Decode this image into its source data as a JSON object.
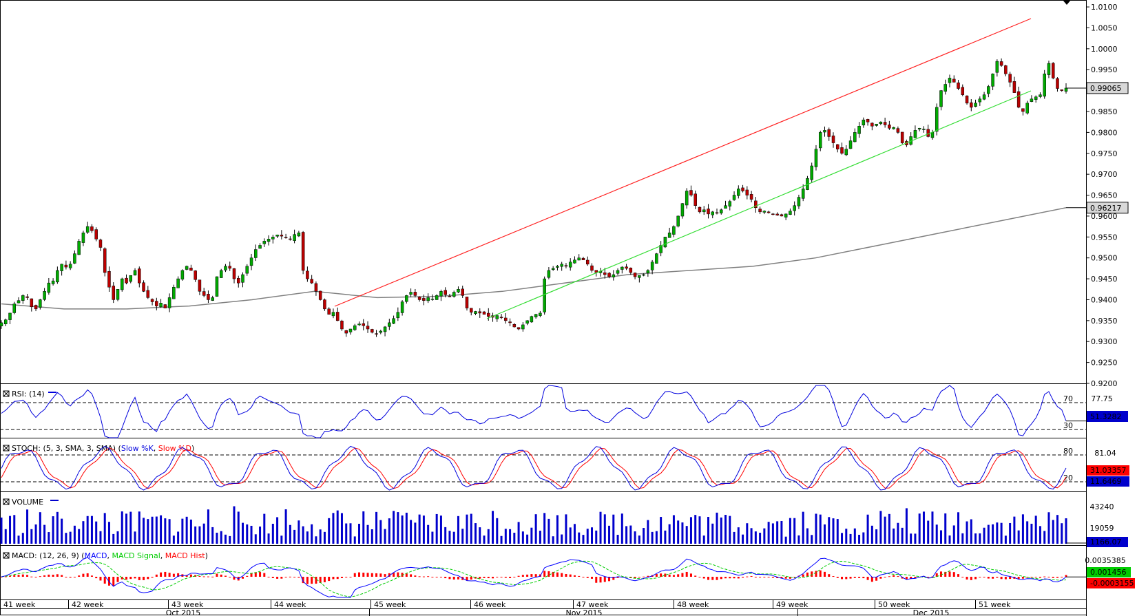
{
  "chart_data": {
    "type": "candlestick",
    "price_axis": {
      "ticks": [
        "1.0100",
        "1.0050",
        "1.0000",
        "0.9950",
        "0.9900",
        "0.9850",
        "0.9800",
        "0.9750",
        "0.9700",
        "0.9650",
        "0.9600",
        "0.9550",
        "0.9500",
        "0.9450",
        "0.9400",
        "0.9350",
        "0.9300",
        "0.9250",
        "0.9200"
      ],
      "range": [
        0.92,
        1.011
      ],
      "last_price_label": "0.99065",
      "ma_label": "0.96217"
    },
    "price_series": [
      0.9345,
      0.9352,
      0.9368,
      0.939,
      0.9398,
      0.941,
      0.9405,
      0.9383,
      0.9378,
      0.94,
      0.942,
      0.944,
      0.9445,
      0.947,
      0.9485,
      0.9478,
      0.9485,
      0.951,
      0.954,
      0.956,
      0.9575,
      0.9565,
      0.9545,
      0.9525,
      0.9465,
      0.943,
      0.94,
      0.9425,
      0.945,
      0.944,
      0.9458,
      0.947,
      0.944,
      0.942,
      0.9405,
      0.9395,
      0.9385,
      0.9392,
      0.938,
      0.9405,
      0.943,
      0.945,
      0.947,
      0.948,
      0.947,
      0.9448,
      0.942,
      0.941,
      0.94,
      0.9405,
      0.9455,
      0.947,
      0.948,
      0.9475,
      0.945,
      0.944,
      0.946,
      0.948,
      0.95,
      0.952,
      0.953,
      0.954,
      0.9545,
      0.955,
      0.9555,
      0.9552,
      0.9548,
      0.9545,
      0.9556,
      0.956,
      0.947,
      0.945,
      0.944,
      0.942,
      0.94,
      0.9378,
      0.9365,
      0.937,
      0.935,
      0.933,
      0.932,
      0.933,
      0.9338,
      0.9342,
      0.9338,
      0.933,
      0.9322,
      0.9318,
      0.9325,
      0.9335,
      0.9345,
      0.9355,
      0.937,
      0.9395,
      0.941,
      0.9418,
      0.941,
      0.94,
      0.9398,
      0.9405,
      0.9402,
      0.941,
      0.942,
      0.9412,
      0.9408,
      0.9418,
      0.9425,
      0.941,
      0.938,
      0.937,
      0.9372,
      0.9368,
      0.9365,
      0.936,
      0.9358,
      0.9362,
      0.9358,
      0.935,
      0.9345,
      0.9335,
      0.933,
      0.934,
      0.935,
      0.936,
      0.9365,
      0.9368,
      0.945,
      0.947,
      0.9475,
      0.948,
      0.9485,
      0.948,
      0.949,
      0.9495,
      0.95,
      0.9495,
      0.9485,
      0.947,
      0.9465,
      0.9468,
      0.946,
      0.9455,
      0.946,
      0.947,
      0.9478,
      0.9475,
      0.9465,
      0.9455,
      0.9458,
      0.946,
      0.947,
      0.949,
      0.951,
      0.953,
      0.955,
      0.956,
      0.9575,
      0.96,
      0.963,
      0.966,
      0.965,
      0.9625,
      0.961,
      0.9615,
      0.9605,
      0.961,
      0.9608,
      0.9615,
      0.9625,
      0.9635,
      0.965,
      0.9665,
      0.966,
      0.965,
      0.964,
      0.962,
      0.961,
      0.9612,
      0.9608,
      0.9605,
      0.9602,
      0.96,
      0.9605,
      0.9612,
      0.9625,
      0.9645,
      0.9665,
      0.969,
      0.972,
      0.976,
      0.98,
      0.9805,
      0.979,
      0.9775,
      0.976,
      0.975,
      0.976,
      0.978,
      0.98,
      0.9815,
      0.983,
      0.9825,
      0.9815,
      0.982,
      0.9825,
      0.9818,
      0.981,
      0.9812,
      0.98,
      0.9775,
      0.977,
      0.979,
      0.9805,
      0.981,
      0.9808,
      0.979,
      0.98,
      0.986,
      0.99,
      0.9915,
      0.993,
      0.992,
      0.9905,
      0.989,
      0.987,
      0.986,
      0.987,
      0.988,
      0.989,
      0.991,
      0.994,
      0.997,
      0.996,
      0.994,
      0.992,
      0.9895,
      0.986,
      0.985,
      0.987,
      0.988,
      0.9885,
      0.989,
      0.994,
      0.9965,
      0.993,
      0.9905,
      0.99,
      0.9906
    ],
    "ma_series": [
      0.939,
      0.9378,
      0.9378,
      0.9385,
      0.94,
      0.942,
      0.9405,
      0.9408,
      0.942,
      0.944,
      0.946,
      0.947,
      0.948,
      0.95,
      0.953,
      0.956,
      0.959,
      0.962
    ],
    "channel": {
      "upper": [
        [
          486,
          445
        ],
        [
          1497,
          27
        ]
      ],
      "lower": [
        [
          707,
          463
        ],
        [
          1497,
          132
        ]
      ]
    },
    "x_labels": [
      "41 week",
      "42 week",
      "43 week",
      "44 week",
      "45 week",
      "46 week",
      "47 week",
      "48 week",
      "49 week",
      "50 week",
      "51 week"
    ],
    "month_labels": [
      "Oct 2015",
      "Nov 2015",
      "Dec 2015"
    ],
    "rsi": {
      "title": "RSI: (14)",
      "levels": [
        "70",
        "30"
      ],
      "axis_label": "77.75",
      "value_label": "51.3282"
    },
    "stoch": {
      "title_prefix": "STOCH: (5, 3, SMA, 3, SMA) (",
      "k_label": "Slow %K",
      "sep": ", ",
      "d_label": "Slow %D",
      "title_suffix": ")",
      "levels": [
        "80",
        "20"
      ],
      "axis_label": "81.04",
      "d_value": "31.03357",
      "k_value": "11.6469"
    },
    "volume": {
      "title": "VOLUME",
      "axis_labels": [
        "43240",
        "19059"
      ],
      "value_label": "1166.07"
    },
    "macd": {
      "title_prefix": "MACD: (12, 26, 9) (",
      "macd_label": "MACD",
      "sep": ", ",
      "signal_label": "MACD Signal",
      "hist_label": "MACD Hist",
      "title_suffix": ")",
      "axis_label": "0.0035385",
      "macd_value": "0.001456",
      "hist_value": "-0.0003155"
    },
    "colors": {
      "up": "#00aa00",
      "down": "#bb0000",
      "ma": "#808080",
      "upper_channel": "#ff2020",
      "lower_channel": "#33dd33",
      "rsi": "#0000dd",
      "stoch_k": "#0000dd",
      "stoch_d": "#ff0000",
      "volume": "#0000cc",
      "macd": "#0000ff",
      "signal": "#00cc00",
      "hist": "#ff0000"
    }
  }
}
